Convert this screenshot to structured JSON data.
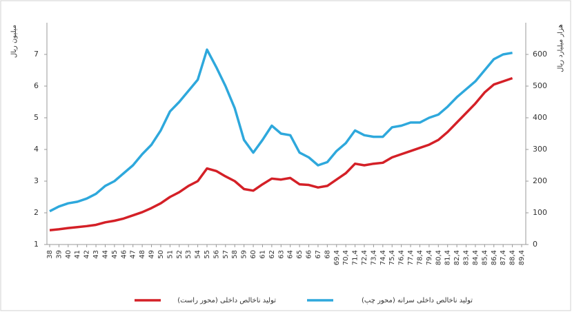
{
  "chart_data": {
    "type": "line",
    "y_label": "میلیون ریال",
    "y2_label": "هزار میلیارد ریال",
    "categories": [
      "38",
      "39",
      "40",
      "41",
      "42",
      "43",
      "44",
      "45",
      "46",
      "47",
      "48",
      "49",
      "50",
      "51",
      "52",
      "53",
      "54",
      "55",
      "56",
      "57",
      "58",
      "59",
      "60",
      "61",
      "62",
      "63",
      "64",
      "65",
      "66",
      "67",
      "68",
      "69,4",
      "70,4",
      "71,4",
      "72,4",
      "73,4",
      "74,4",
      "75,4",
      "76,4",
      "77,4",
      "78,4",
      "79,4",
      "80,4",
      "81,4",
      "82,4",
      "83,4",
      "84,4",
      "85,4",
      "86,4",
      "87,4",
      "88,4",
      "89,4"
    ],
    "series": [
      {
        "name": "تولید ناخالص داخلی (محور راست)",
        "color": "#d42027",
        "axis": "y2",
        "values": [
          45,
          48,
          52,
          55,
          58,
          62,
          70,
          75,
          82,
          92,
          102,
          115,
          130,
          150,
          165,
          185,
          200,
          240,
          232,
          215,
          200,
          175,
          170,
          190,
          208,
          205,
          210,
          190,
          188,
          180,
          185,
          205,
          225,
          255,
          250,
          255,
          258,
          275,
          285,
          295,
          305,
          315,
          330,
          355,
          385,
          415,
          445,
          480,
          505,
          515,
          525,
          null
        ]
      },
      {
        "name": "تولید ناخالص داخلی سرانه (محور چپ)",
        "color": "#2ea8dc",
        "values": [
          2.05,
          2.2,
          2.3,
          2.35,
          2.45,
          2.6,
          2.85,
          3.0,
          3.25,
          3.5,
          3.85,
          4.15,
          4.6,
          5.2,
          5.5,
          5.85,
          6.2,
          7.15,
          6.6,
          6.0,
          5.3,
          4.3,
          3.9,
          4.3,
          4.75,
          4.5,
          4.45,
          3.9,
          3.75,
          3.5,
          3.6,
          3.95,
          4.2,
          4.6,
          4.45,
          4.4,
          4.4,
          4.7,
          4.75,
          4.85,
          4.85,
          5.0,
          5.1,
          5.35,
          5.65,
          5.9,
          6.15,
          6.5,
          6.85,
          7.0,
          7.05,
          null
        ]
      }
    ],
    "ylim": [
      1,
      8
    ],
    "yticks": [
      1,
      2,
      3,
      4,
      5,
      6,
      7
    ],
    "y2lim": [
      0,
      700
    ],
    "y2ticks": [
      0,
      100,
      200,
      300,
      400,
      500,
      600
    ]
  }
}
